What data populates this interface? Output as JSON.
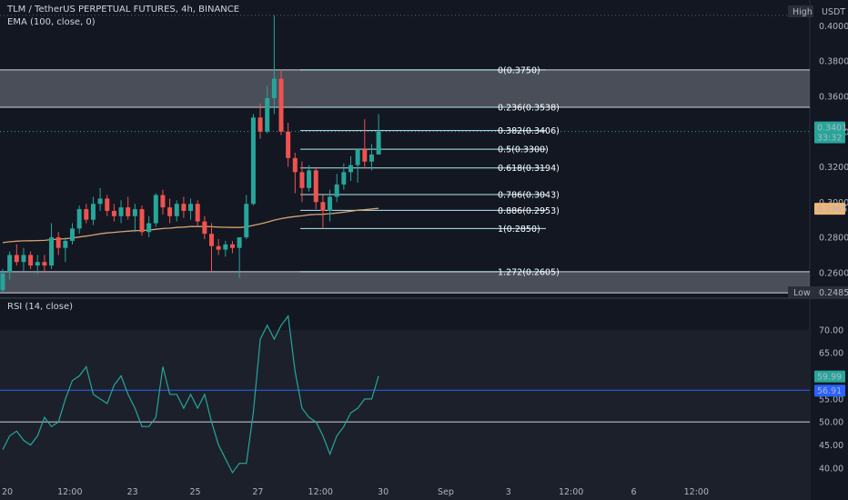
{
  "header": {
    "title": "TLM / TetherUS PERPETUAL FUTURES, 4h, BINANCE",
    "indicator": "EMA (100, close, 0)",
    "rsi_label": "RSI (14, close)"
  },
  "price_badges": {
    "high_label": "High",
    "high_value": "USDT",
    "last_price": "0.3401",
    "countdown": "33:32",
    "ema_value": "0.2965",
    "low_label": "Low",
    "low_value": "0.2485"
  },
  "rsi_badges": {
    "rsi_value": "59.99",
    "rsi_ma_value": "56.91"
  },
  "colors": {
    "background": "#131722",
    "up": "#26a69a",
    "down": "#ef5350",
    "ema": "#d4a373",
    "rsi": "#26a69a",
    "rsi_ma": "#2962ff",
    "zone": "#787b86",
    "fib": "#b2ebf2"
  },
  "chart_data": [
    {
      "type": "candlestick",
      "title": "TLM / TetherUS PERPETUAL FUTURES, 4h, BINANCE",
      "x_ticks": [
        "20",
        "12:00",
        "23",
        "25",
        "27",
        "12:00",
        "30",
        "Sep",
        "3",
        "12:00",
        "6",
        "12:00"
      ],
      "y_ticks": [
        "0.4000",
        "0.3800",
        "0.3600",
        "0.3400",
        "0.3200",
        "0.3000",
        "0.2800",
        "0.2600"
      ],
      "ylim": [
        0.2465,
        0.4085
      ],
      "grid": false,
      "candles": [
        {
          "o": 0.25,
          "h": 0.262,
          "l": 0.2485,
          "c": 0.2595
        },
        {
          "o": 0.26,
          "h": 0.272,
          "l": 0.256,
          "c": 0.27
        },
        {
          "o": 0.27,
          "h": 0.276,
          "l": 0.264,
          "c": 0.266
        },
        {
          "o": 0.266,
          "h": 0.274,
          "l": 0.261,
          "c": 0.27
        },
        {
          "o": 0.27,
          "h": 0.272,
          "l": 0.262,
          "c": 0.264
        },
        {
          "o": 0.264,
          "h": 0.27,
          "l": 0.259,
          "c": 0.266
        },
        {
          "o": 0.266,
          "h": 0.27,
          "l": 0.26,
          "c": 0.264
        },
        {
          "o": 0.264,
          "h": 0.288,
          "l": 0.262,
          "c": 0.28
        },
        {
          "o": 0.28,
          "h": 0.283,
          "l": 0.27,
          "c": 0.274
        },
        {
          "o": 0.274,
          "h": 0.28,
          "l": 0.266,
          "c": 0.278
        },
        {
          "o": 0.278,
          "h": 0.288,
          "l": 0.276,
          "c": 0.285
        },
        {
          "o": 0.285,
          "h": 0.298,
          "l": 0.282,
          "c": 0.296
        },
        {
          "o": 0.296,
          "h": 0.299,
          "l": 0.288,
          "c": 0.29
        },
        {
          "o": 0.29,
          "h": 0.303,
          "l": 0.287,
          "c": 0.299
        },
        {
          "o": 0.299,
          "h": 0.308,
          "l": 0.295,
          "c": 0.302
        },
        {
          "o": 0.302,
          "h": 0.304,
          "l": 0.292,
          "c": 0.295
        },
        {
          "o": 0.295,
          "h": 0.299,
          "l": 0.289,
          "c": 0.292
        },
        {
          "o": 0.292,
          "h": 0.301,
          "l": 0.288,
          "c": 0.297
        },
        {
          "o": 0.297,
          "h": 0.303,
          "l": 0.29,
          "c": 0.292
        },
        {
          "o": 0.292,
          "h": 0.299,
          "l": 0.283,
          "c": 0.296
        },
        {
          "o": 0.296,
          "h": 0.298,
          "l": 0.281,
          "c": 0.283
        },
        {
          "o": 0.283,
          "h": 0.292,
          "l": 0.28,
          "c": 0.288
        },
        {
          "o": 0.288,
          "h": 0.305,
          "l": 0.286,
          "c": 0.304
        },
        {
          "o": 0.304,
          "h": 0.307,
          "l": 0.293,
          "c": 0.297
        },
        {
          "o": 0.297,
          "h": 0.302,
          "l": 0.288,
          "c": 0.292
        },
        {
          "o": 0.292,
          "h": 0.301,
          "l": 0.289,
          "c": 0.299
        },
        {
          "o": 0.299,
          "h": 0.303,
          "l": 0.291,
          "c": 0.295
        },
        {
          "o": 0.295,
          "h": 0.302,
          "l": 0.29,
          "c": 0.299
        },
        {
          "o": 0.299,
          "h": 0.301,
          "l": 0.286,
          "c": 0.289
        },
        {
          "o": 0.289,
          "h": 0.292,
          "l": 0.279,
          "c": 0.282
        },
        {
          "o": 0.282,
          "h": 0.288,
          "l": 0.26,
          "c": 0.275
        },
        {
          "o": 0.275,
          "h": 0.279,
          "l": 0.27,
          "c": 0.273
        },
        {
          "o": 0.273,
          "h": 0.278,
          "l": 0.269,
          "c": 0.276
        },
        {
          "o": 0.276,
          "h": 0.278,
          "l": 0.271,
          "c": 0.274
        },
        {
          "o": 0.274,
          "h": 0.28,
          "l": 0.257,
          "c": 0.28
        },
        {
          "o": 0.28,
          "h": 0.304,
          "l": 0.279,
          "c": 0.299
        },
        {
          "o": 0.299,
          "h": 0.35,
          "l": 0.298,
          "c": 0.348
        },
        {
          "o": 0.348,
          "h": 0.356,
          "l": 0.336,
          "c": 0.34
        },
        {
          "o": 0.34,
          "h": 0.366,
          "l": 0.339,
          "c": 0.359
        },
        {
          "o": 0.359,
          "h": 0.406,
          "l": 0.35,
          "c": 0.37
        },
        {
          "o": 0.37,
          "h": 0.375,
          "l": 0.338,
          "c": 0.34
        },
        {
          "o": 0.34,
          "h": 0.345,
          "l": 0.32,
          "c": 0.325
        },
        {
          "o": 0.325,
          "h": 0.328,
          "l": 0.305,
          "c": 0.317
        },
        {
          "o": 0.317,
          "h": 0.323,
          "l": 0.3,
          "c": 0.308
        },
        {
          "o": 0.308,
          "h": 0.321,
          "l": 0.306,
          "c": 0.318
        },
        {
          "o": 0.318,
          "h": 0.32,
          "l": 0.296,
          "c": 0.3
        },
        {
          "o": 0.3,
          "h": 0.304,
          "l": 0.285,
          "c": 0.295
        },
        {
          "o": 0.295,
          "h": 0.307,
          "l": 0.289,
          "c": 0.303
        },
        {
          "o": 0.303,
          "h": 0.316,
          "l": 0.3,
          "c": 0.31
        },
        {
          "o": 0.31,
          "h": 0.322,
          "l": 0.307,
          "c": 0.317
        },
        {
          "o": 0.317,
          "h": 0.326,
          "l": 0.312,
          "c": 0.321
        },
        {
          "o": 0.321,
          "h": 0.329,
          "l": 0.311,
          "c": 0.33
        },
        {
          "o": 0.33,
          "h": 0.347,
          "l": 0.319,
          "c": 0.323
        },
        {
          "o": 0.323,
          "h": 0.333,
          "l": 0.318,
          "c": 0.327
        },
        {
          "o": 0.327,
          "h": 0.35,
          "l": 0.327,
          "c": 0.3401
        }
      ],
      "ema": [
        0.277,
        0.2775,
        0.2778,
        0.278,
        0.2781,
        0.2782,
        0.2783,
        0.2787,
        0.279,
        0.2792,
        0.2796,
        0.2802,
        0.2807,
        0.2813,
        0.282,
        0.2825,
        0.2828,
        0.2832,
        0.2835,
        0.2838,
        0.2839,
        0.2841,
        0.2846,
        0.285,
        0.2852,
        0.2856,
        0.2858,
        0.2861,
        0.2862,
        0.2861,
        0.286,
        0.2858,
        0.2857,
        0.2856,
        0.2856,
        0.2859,
        0.2868,
        0.2876,
        0.2886,
        0.2898,
        0.2906,
        0.2913,
        0.2918,
        0.2922,
        0.2928,
        0.293,
        0.2931,
        0.2934,
        0.2938,
        0.2943,
        0.2948,
        0.2954,
        0.2957,
        0.2961,
        0.2965
      ],
      "fib_levels": [
        {
          "label": "0(0.3750)",
          "value": 0.375
        },
        {
          "label": "0.236(0.3538)",
          "value": 0.3538
        },
        {
          "label": "0.382(0.3406)",
          "value": 0.3406
        },
        {
          "label": "0.5(0.3300)",
          "value": 0.33
        },
        {
          "label": "0.618(0.3194)",
          "value": 0.3194
        },
        {
          "label": "0.786(0.3043)",
          "value": 0.3043
        },
        {
          "label": "0.886(0.2953)",
          "value": 0.2953
        },
        {
          "label": "1(0.2850)",
          "value": 0.285
        },
        {
          "label": "1.272(0.2605)",
          "value": 0.2605
        }
      ],
      "zones": [
        {
          "from": 0.3538,
          "to": 0.375
        },
        {
          "from": 0.2485,
          "to": 0.2605
        }
      ]
    },
    {
      "type": "line",
      "title": "RSI (14, close)",
      "y_ticks": [
        "70.00",
        "65.00",
        "55.00",
        "50.00",
        "45.00",
        "40.00"
      ],
      "ylim": [
        37.0,
        76.5
      ],
      "band": [
        30,
        70
      ],
      "hlines": [
        50
      ],
      "series": [
        {
          "values": [
            44,
            47,
            48,
            46,
            45,
            47,
            51,
            49,
            50,
            55,
            59,
            60,
            62,
            56,
            55,
            54,
            58,
            60,
            56,
            53,
            49,
            49,
            51,
            62,
            56,
            56,
            53,
            56,
            53,
            56,
            50,
            45,
            42,
            39,
            41,
            41,
            52,
            68,
            71,
            68,
            71,
            73,
            61,
            53,
            51,
            50,
            47,
            43,
            47,
            49,
            52,
            53,
            55,
            55,
            59.99
          ]
        },
        {
          "name": "",
          "values": [
            56.91,
            56.91
          ]
        }
      ]
    }
  ]
}
